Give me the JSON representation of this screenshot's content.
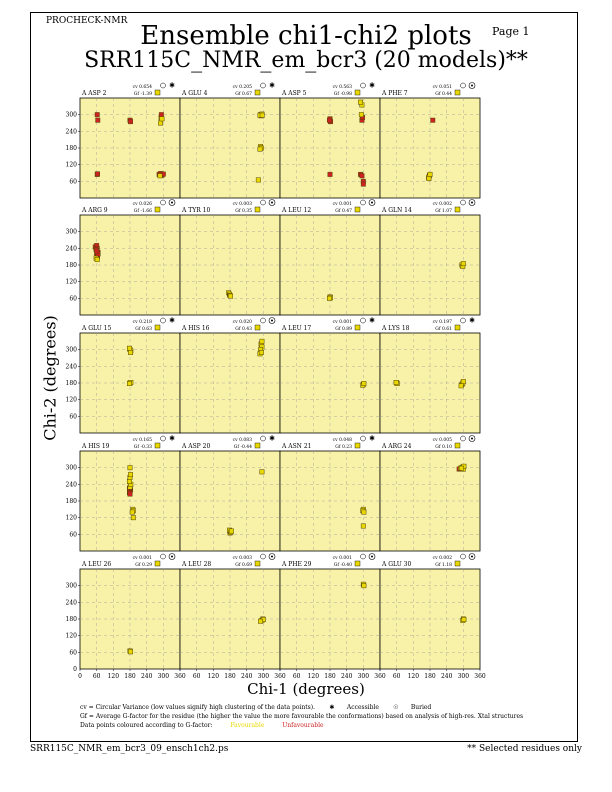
{
  "header": {
    "app_label": "PROCHECK-NMR",
    "page_label": "Page  1",
    "title": "Ensemble chi1-chi2 plots",
    "subtitle": "SRR115C_NMR_em_bcr3 (20 models)**"
  },
  "colors": {
    "panel_fill": "#f8f2a8",
    "favourable": "#e8d800",
    "unfavourable": "#cc2222",
    "gridline": "#999999"
  },
  "legend": {
    "line1": "cv = Circular Variance (low values signify high clustering of the data points).",
    "accessible_label": "Accessible",
    "buried_label": "Buried",
    "line2": "Gf = Average G-factor for the residue (the higher the value the more favourable the conformations) based on analysis of high-res. Xtal structures",
    "line3": "Data points coloured according to G-factor:",
    "favourable_label": "Favourable",
    "unfavourable_label": "Unfavourable"
  },
  "footer": {
    "filename": "SRR115C_NMR_em_bcr3_09_ensch1ch2.ps",
    "selected_note": "** Selected residues only"
  },
  "chart_data": {
    "type": "scatter",
    "xlabel": "Chi-1 (degrees)",
    "ylabel": "Chi-2 (degrees)",
    "xlim": [
      0,
      360
    ],
    "ylim": [
      0,
      360
    ],
    "x_ticks": [
      "0",
      "60",
      "120",
      "180",
      "240",
      "300",
      "360"
    ],
    "y_ticks": [
      "60",
      "120",
      "180",
      "240",
      "300"
    ],
    "bottom_y_ticks": [
      "0",
      "60",
      "120",
      "180",
      "240",
      "300"
    ],
    "x_axis_ticks": [
      "0",
      "60",
      "120",
      "180",
      "240",
      "300",
      "360"
    ],
    "bottom_x_ticks": [
      "0",
      "60",
      "120",
      "180",
      "240",
      "300",
      "360"
    ],
    "grid": true,
    "panels": [
      {
        "residue": "A ASP 2",
        "cv": "cv 0.654",
        "gf": "Gf -1.39",
        "access": "accessible",
        "points": [
          [
            62,
            85,
            "u"
          ],
          [
            63,
            87,
            "u"
          ],
          [
            62,
            300,
            "u"
          ],
          [
            64,
            280,
            "u"
          ],
          [
            180,
            280,
            "u"
          ],
          [
            182,
            275,
            "u"
          ],
          [
            285,
            85,
            "u"
          ],
          [
            290,
            88,
            "u"
          ],
          [
            295,
            82,
            "u"
          ],
          [
            300,
            86,
            "u"
          ],
          [
            292,
            290,
            "f"
          ],
          [
            293,
            300,
            "u"
          ],
          [
            290,
            270,
            "f"
          ],
          [
            295,
            285,
            "f"
          ],
          [
            288,
            80,
            "f"
          ]
        ]
      },
      {
        "residue": "A GLU 4",
        "cv": "cv 0.205",
        "gf": "Gf 0.67",
        "access": "accessible",
        "points": [
          [
            290,
            300,
            "f"
          ],
          [
            292,
            296,
            "f"
          ],
          [
            295,
            302,
            "f"
          ],
          [
            288,
            298,
            "f"
          ],
          [
            296,
            298,
            "f"
          ],
          [
            290,
            185,
            "f"
          ],
          [
            293,
            180,
            "f"
          ],
          [
            288,
            176,
            "f"
          ],
          [
            282,
            65,
            "f"
          ]
        ]
      },
      {
        "residue": "A ASP 5",
        "cv": "cv 0.563",
        "gf": "Gf -0.98",
        "access": "accessible",
        "points": [
          [
            180,
            285,
            "u"
          ],
          [
            182,
            275,
            "u"
          ],
          [
            178,
            280,
            "u"
          ],
          [
            180,
            85,
            "u"
          ],
          [
            290,
            85,
            "u"
          ],
          [
            295,
            80,
            "u"
          ],
          [
            300,
            60,
            "u"
          ],
          [
            300,
            50,
            "u"
          ],
          [
            295,
            280,
            "u"
          ],
          [
            297,
            290,
            "u"
          ],
          [
            293,
            300,
            "f"
          ],
          [
            295,
            335,
            "f"
          ],
          [
            290,
            345,
            "f"
          ]
        ]
      },
      {
        "residue": "A PHE 7",
        "cv": "cv 0.051",
        "gf": "Gf 0.44",
        "access": "buried",
        "points": [
          [
            178,
            80,
            "f"
          ],
          [
            175,
            75,
            "f"
          ],
          [
            180,
            85,
            "f"
          ],
          [
            176,
            70,
            "f"
          ],
          [
            190,
            280,
            "u"
          ]
        ]
      },
      {
        "residue": "A ARG 9",
        "cv": "cv 0.026",
        "gf": "Gf -1.66",
        "access": "buried",
        "points": [
          [
            55,
            245,
            "u"
          ],
          [
            60,
            250,
            "u"
          ],
          [
            62,
            240,
            "u"
          ],
          [
            58,
            235,
            "u"
          ],
          [
            65,
            225,
            "u"
          ],
          [
            60,
            215,
            "u"
          ],
          [
            63,
            210,
            "u"
          ],
          [
            58,
            205,
            "f"
          ],
          [
            62,
            200,
            "f"
          ],
          [
            65,
            220,
            "u"
          ],
          [
            60,
            230,
            "u"
          ]
        ]
      },
      {
        "residue": "A TYR 10",
        "cv": "cv 0.003",
        "gf": "Gf 0.35",
        "access": "buried",
        "points": [
          [
            175,
            80,
            "f"
          ],
          [
            178,
            75,
            "f"
          ],
          [
            180,
            70,
            "f"
          ],
          [
            182,
            68,
            "f"
          ]
        ]
      },
      {
        "residue": "A LEU 12",
        "cv": "cv 0.001",
        "gf": "Gf 0.47",
        "access": "buried",
        "points": [
          [
            180,
            65,
            "f"
          ],
          [
            182,
            62,
            "f"
          ],
          [
            178,
            60,
            "f"
          ]
        ]
      },
      {
        "residue": "A GLN 14",
        "cv": "cv 0.002",
        "gf": "Gf 1.07",
        "access": "buried",
        "points": [
          [
            295,
            180,
            "f"
          ],
          [
            298,
            175,
            "f"
          ],
          [
            300,
            185,
            "f"
          ]
        ]
      },
      {
        "residue": "A GLU 15",
        "cv": "cv 0.218",
        "gf": "Gf 0.63",
        "access": "accessible",
        "points": [
          [
            180,
            300,
            "f"
          ],
          [
            183,
            295,
            "f"
          ],
          [
            178,
            305,
            "f"
          ],
          [
            182,
            290,
            "f"
          ],
          [
            180,
            180,
            "f"
          ],
          [
            183,
            182,
            "f"
          ],
          [
            178,
            178,
            "f"
          ]
        ]
      },
      {
        "residue": "A HIS 16",
        "cv": "cv 0.020",
        "gf": "Gf 0.43",
        "access": "buried",
        "points": [
          [
            292,
            320,
            "f"
          ],
          [
            295,
            310,
            "f"
          ],
          [
            290,
            300,
            "f"
          ],
          [
            288,
            285,
            "f"
          ],
          [
            293,
            290,
            "f"
          ],
          [
            295,
            330,
            "f"
          ]
        ]
      },
      {
        "residue": "A LEU 17",
        "cv": "cv 0.001",
        "gf": "Gf 0.89",
        "access": "accessible",
        "points": [
          [
            300,
            175,
            "f"
          ],
          [
            298,
            172,
            "f"
          ],
          [
            302,
            178,
            "f"
          ]
        ]
      },
      {
        "residue": "A LYS 18",
        "cv": "cv 0.197",
        "gf": "Gf 0.61",
        "access": "accessible",
        "points": [
          [
            60,
            180,
            "f"
          ],
          [
            62,
            178,
            "f"
          ],
          [
            58,
            182,
            "f"
          ],
          [
            295,
            175,
            "f"
          ],
          [
            298,
            180,
            "f"
          ],
          [
            300,
            185,
            "f"
          ],
          [
            292,
            170,
            "f"
          ]
        ]
      },
      {
        "residue": "A HIS 19",
        "cv": "cv 0.165",
        "gf": "Gf -0.33",
        "access": "accessible",
        "points": [
          [
            180,
            215,
            "u"
          ],
          [
            182,
            220,
            "u"
          ],
          [
            178,
            225,
            "u"
          ],
          [
            180,
            230,
            "f"
          ],
          [
            183,
            240,
            "f"
          ],
          [
            178,
            250,
            "f"
          ],
          [
            180,
            265,
            "f"
          ],
          [
            182,
            275,
            "f"
          ],
          [
            180,
            300,
            "f"
          ],
          [
            190,
            150,
            "f"
          ],
          [
            192,
            145,
            "f"
          ],
          [
            188,
            140,
            "f"
          ],
          [
            192,
            120,
            "f"
          ],
          [
            178,
            210,
            "u"
          ],
          [
            180,
            205,
            "u"
          ]
        ]
      },
      {
        "residue": "A ASP 20",
        "cv": "cv 0.083",
        "gf": "Gf -0.44",
        "access": "accessible",
        "points": [
          [
            180,
            65,
            "f"
          ],
          [
            182,
            70,
            "f"
          ],
          [
            178,
            75,
            "f"
          ],
          [
            183,
            68,
            "f"
          ],
          [
            185,
            72,
            "f"
          ],
          [
            295,
            285,
            "f"
          ]
        ]
      },
      {
        "residue": "A ASN 21",
        "cv": "cv 0.048",
        "gf": "Gf 0.23",
        "access": "accessible",
        "points": [
          [
            300,
            150,
            "f"
          ],
          [
            298,
            145,
            "f"
          ],
          [
            302,
            140,
            "f"
          ],
          [
            300,
            90,
            "f"
          ]
        ]
      },
      {
        "residue": "A ARG 24",
        "cv": "cv 0.005",
        "gf": "Gf 0.10",
        "access": "buried",
        "points": [
          [
            285,
            295,
            "u"
          ],
          [
            290,
            298,
            "f"
          ],
          [
            295,
            300,
            "f"
          ],
          [
            298,
            302,
            "f"
          ],
          [
            300,
            295,
            "f"
          ],
          [
            302,
            305,
            "f"
          ],
          [
            293,
            298,
            "f"
          ]
        ]
      },
      {
        "residue": "A LEU 26",
        "cv": "cv 0.001",
        "gf": "Gf 0.29",
        "access": "buried",
        "points": [
          [
            180,
            65,
            "f"
          ],
          [
            182,
            62,
            "f"
          ]
        ]
      },
      {
        "residue": "A LEU 28",
        "cv": "cv 0.003",
        "gf": "Gf 0.69",
        "access": "buried",
        "points": [
          [
            295,
            175,
            "f"
          ],
          [
            298,
            180,
            "f"
          ],
          [
            300,
            178,
            "f"
          ],
          [
            290,
            172,
            "f"
          ]
        ]
      },
      {
        "residue": "A PHE 29",
        "cv": "cv 0.001",
        "gf": "Gf -0.40",
        "access": "buried",
        "points": [
          [
            300,
            305,
            "f"
          ],
          [
            302,
            300,
            "f"
          ]
        ]
      },
      {
        "residue": "A GLU 30",
        "cv": "cv 0.002",
        "gf": "Gf 1.18",
        "access": "buried",
        "points": [
          [
            300,
            180,
            "f"
          ],
          [
            298,
            175,
            "f"
          ],
          [
            302,
            178,
            "f"
          ]
        ]
      }
    ]
  }
}
